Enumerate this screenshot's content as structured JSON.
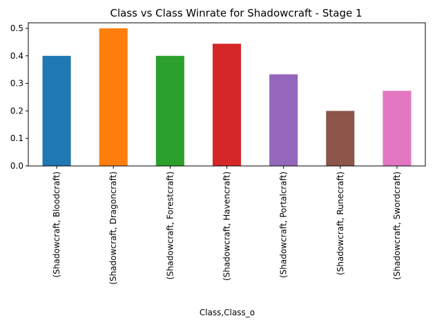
{
  "chart_data": {
    "type": "bar",
    "title": "Class vs Class Winrate for Shadowcraft - Stage 1",
    "xlabel": "Class,Class_o",
    "ylabel": "",
    "ylim": [
      0,
      0.52
    ],
    "yticks": [
      "0.0",
      "0.1",
      "0.2",
      "0.3",
      "0.4",
      "0.5"
    ],
    "grid": false,
    "categories": [
      "(Shadowcraft, Bloodcraft)",
      "(Shadowcraft, Dragoncraft)",
      "(Shadowcraft, Forestcraft)",
      "(Shadowcraft, Havencraft)",
      "(Shadowcraft, Portalcraft)",
      "(Shadowcraft, Runecraft)",
      "(Shadowcraft, Swordcraft)"
    ],
    "values": [
      0.4,
      0.5,
      0.4,
      0.444,
      0.333,
      0.2,
      0.273
    ],
    "colors": [
      "#1f77b4",
      "#ff7f0e",
      "#2ca02c",
      "#d62728",
      "#9467bd",
      "#8c564b",
      "#e377c2"
    ]
  }
}
